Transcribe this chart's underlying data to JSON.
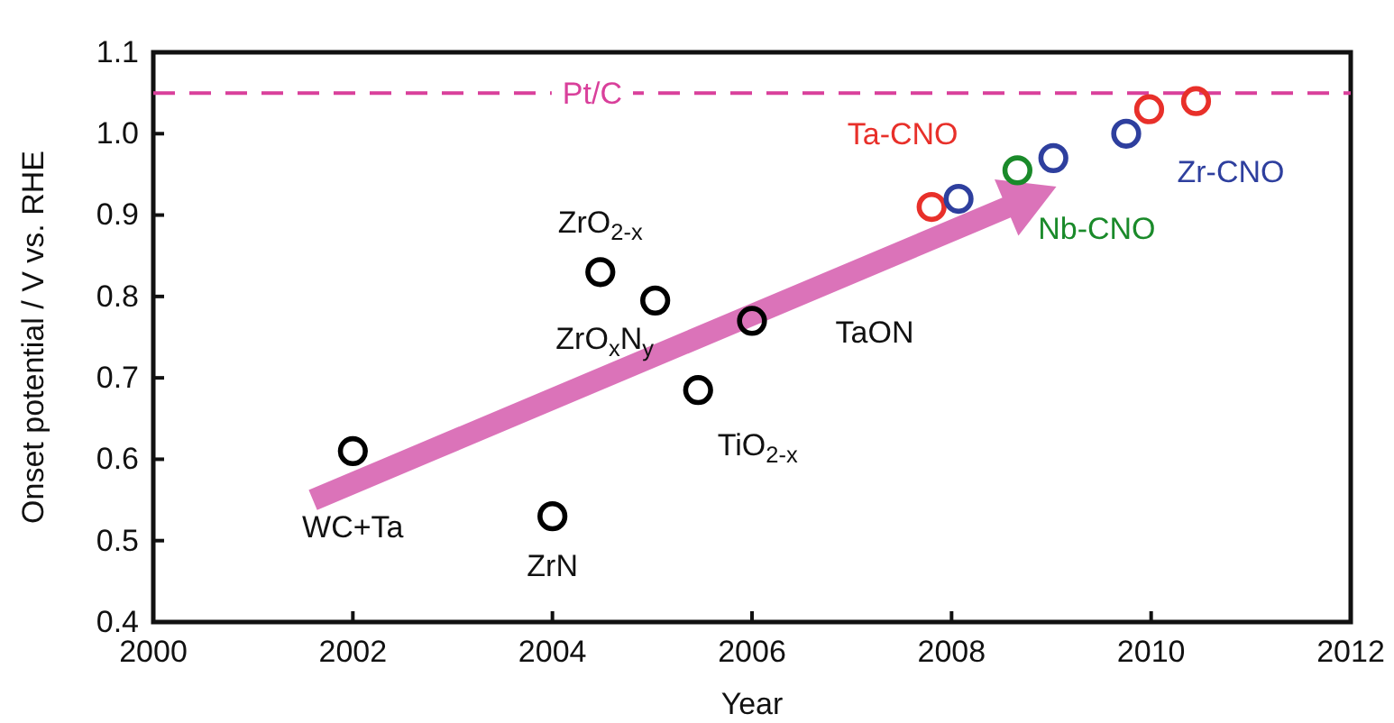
{
  "chart_data": {
    "type": "scatter",
    "xlabel": "Year",
    "ylabel": "Onset potential / V vs. RHE",
    "xlim": [
      2000,
      2012
    ],
    "xticks": [
      2000,
      2002,
      2004,
      2006,
      2008,
      2010,
      2012
    ],
    "ylim": [
      0.4,
      1.1
    ],
    "yticks": [
      0.4,
      0.5,
      0.6,
      0.7,
      0.8,
      0.9,
      {
        "value": 1,
        "label": "1.0"
      },
      1.1
    ],
    "marker": "circle",
    "grid": false,
    "ref_lines": [
      {
        "axis": "y",
        "value": 1.05,
        "label": "Pt/C",
        "color": "#d9409b",
        "line_style": "dashed"
      }
    ],
    "series": [
      {
        "name": "WC+Ta",
        "color": "#000000",
        "x": [
          2002.0
        ],
        "values": [
          0.61
        ]
      },
      {
        "name": "ZrN",
        "color": "#000000",
        "x": [
          2004.0
        ],
        "values": [
          0.53
        ]
      },
      {
        "name": "ZrO$_{2-x}$",
        "color": "#000000",
        "x": [
          2004.48
        ],
        "values": [
          0.83
        ]
      },
      {
        "name": "ZrO$_{x}$N$_{y}$",
        "color": "#000000",
        "x": [
          2005.03
        ],
        "values": [
          0.795
        ]
      },
      {
        "name": "TiO$_{2-x}$",
        "color": "#000000",
        "x": [
          2005.46
        ],
        "values": [
          0.685
        ]
      },
      {
        "name": "TaON",
        "color": "#000000",
        "x": [
          2006.0
        ],
        "values": [
          0.77
        ]
      },
      {
        "name": "Ta-CNO",
        "color": "#e8302a",
        "x": [
          2007.8,
          2009.98,
          2010.45
        ],
        "values": [
          0.91,
          1.03,
          1.04
        ]
      },
      {
        "name": "Zr-CNO",
        "color": "#2e3f9e",
        "x": [
          2008.07,
          2009.02,
          2009.75
        ],
        "values": [
          0.92,
          0.97,
          1.0
        ]
      },
      {
        "name": "Nb-CNO",
        "color": "#1a8a2a",
        "x": [
          2008.66
        ],
        "values": [
          0.955
        ]
      }
    ]
  }
}
